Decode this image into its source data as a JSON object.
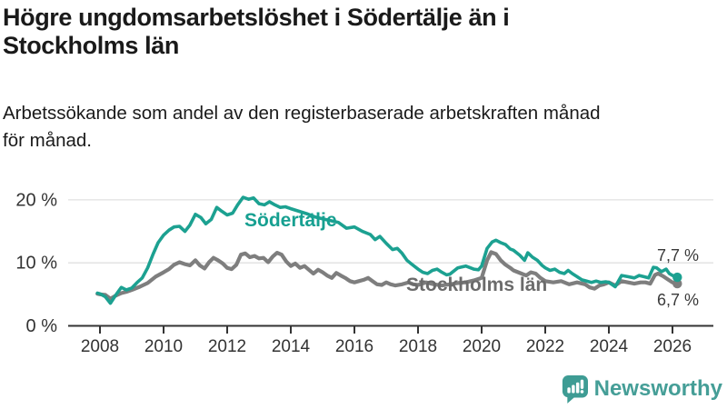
{
  "header": {
    "title": "Högre ungdomsarbetslöshet i Södertälje än i Stockholms län",
    "title_lines": [
      "Högre ungdomsarbetslöshet i Södertälje än i",
      "Stockholms län"
    ],
    "subtitle": "Arbetssökande som andel av den registerbaserade arbetskraften månad för månad.",
    "subtitle_lines": [
      "Arbetssökande som andel av den registerbaserade arbetskraften månad",
      "för månad."
    ]
  },
  "branding": {
    "name": "Newsworthy",
    "icon": "bar-chart-speech-bubble-icon",
    "color": "#459E97"
  },
  "chart_data": {
    "type": "line",
    "title": "Högre ungdomsarbetslöshet i Södertälje än i Stockholms län",
    "xlabel": "",
    "ylabel": "",
    "grid": "horizontal",
    "legend_position": "inline-labels",
    "x_axis": {
      "range": [
        2007.6,
        2027.3
      ],
      "ticks": [
        {
          "value": 2008,
          "label": "2008"
        },
        {
          "value": 2010,
          "label": "2010"
        },
        {
          "value": 2012,
          "label": "2012"
        },
        {
          "value": 2014,
          "label": "2014"
        },
        {
          "value": 2016,
          "label": "2016"
        },
        {
          "value": 2018,
          "label": "2018"
        },
        {
          "value": 2020,
          "label": "2020"
        },
        {
          "value": 2022,
          "label": "2022"
        },
        {
          "value": 2024,
          "label": "2024"
        },
        {
          "value": 2026,
          "label": "2026"
        }
      ]
    },
    "y_axis": {
      "range": [
        0,
        22
      ],
      "unit": "%",
      "ticks": [
        {
          "value": 0,
          "label": "0 %"
        },
        {
          "value": 10,
          "label": "10 %"
        },
        {
          "value": 20,
          "label": "20 %"
        }
      ]
    },
    "series": [
      {
        "name": "Södertälje",
        "color": "#1CA191",
        "label_color": "#17A091",
        "end_label": "7,7 %",
        "final_value": 7.7,
        "points": [
          [
            2007.92,
            5.2
          ],
          [
            2008.0,
            5.1
          ],
          [
            2008.17,
            4.6
          ],
          [
            2008.33,
            3.6
          ],
          [
            2008.5,
            4.9
          ],
          [
            2008.67,
            6.1
          ],
          [
            2008.83,
            5.7
          ],
          [
            2009.0,
            6.0
          ],
          [
            2009.17,
            6.9
          ],
          [
            2009.33,
            7.6
          ],
          [
            2009.5,
            9.2
          ],
          [
            2009.67,
            11.4
          ],
          [
            2009.83,
            13.2
          ],
          [
            2010.0,
            14.4
          ],
          [
            2010.17,
            15.2
          ],
          [
            2010.33,
            15.7
          ],
          [
            2010.5,
            15.8
          ],
          [
            2010.67,
            15.0
          ],
          [
            2010.83,
            16.0
          ],
          [
            2011.0,
            17.7
          ],
          [
            2011.17,
            17.2
          ],
          [
            2011.33,
            16.2
          ],
          [
            2011.5,
            16.9
          ],
          [
            2011.67,
            18.8
          ],
          [
            2011.83,
            18.2
          ],
          [
            2012.0,
            17.6
          ],
          [
            2012.17,
            17.9
          ],
          [
            2012.33,
            19.2
          ],
          [
            2012.5,
            20.4
          ],
          [
            2012.67,
            20.1
          ],
          [
            2012.83,
            20.3
          ],
          [
            2013.0,
            19.4
          ],
          [
            2013.17,
            19.2
          ],
          [
            2013.33,
            19.7
          ],
          [
            2013.5,
            19.2
          ],
          [
            2013.67,
            18.8
          ],
          [
            2013.83,
            18.9
          ],
          [
            2014.0,
            18.6
          ],
          [
            2014.25,
            18.2
          ],
          [
            2014.5,
            17.8
          ],
          [
            2014.75,
            17.3
          ],
          [
            2015.0,
            17.0
          ],
          [
            2015.25,
            16.7
          ],
          [
            2015.5,
            16.4
          ],
          [
            2015.75,
            15.5
          ],
          [
            2016.0,
            15.7
          ],
          [
            2016.25,
            15.0
          ],
          [
            2016.5,
            14.5
          ],
          [
            2016.65,
            13.7
          ],
          [
            2016.8,
            14.2
          ],
          [
            2017.0,
            13.1
          ],
          [
            2017.2,
            12.1
          ],
          [
            2017.35,
            12.3
          ],
          [
            2017.5,
            11.5
          ],
          [
            2017.65,
            10.4
          ],
          [
            2017.8,
            9.8
          ],
          [
            2018.0,
            9.0
          ],
          [
            2018.15,
            8.5
          ],
          [
            2018.3,
            8.3
          ],
          [
            2018.45,
            8.8
          ],
          [
            2018.6,
            9.0
          ],
          [
            2018.75,
            8.5
          ],
          [
            2018.9,
            8.1
          ],
          [
            2019.0,
            8.2
          ],
          [
            2019.25,
            9.2
          ],
          [
            2019.5,
            9.5
          ],
          [
            2019.75,
            9.0
          ],
          [
            2019.9,
            8.9
          ],
          [
            2020.0,
            9.5
          ],
          [
            2020.17,
            12.3
          ],
          [
            2020.33,
            13.3
          ],
          [
            2020.45,
            13.6
          ],
          [
            2020.6,
            13.2
          ],
          [
            2020.75,
            12.9
          ],
          [
            2020.9,
            12.2
          ],
          [
            2021.0,
            12.0
          ],
          [
            2021.2,
            11.2
          ],
          [
            2021.35,
            10.4
          ],
          [
            2021.45,
            11.6
          ],
          [
            2021.6,
            10.9
          ],
          [
            2021.75,
            10.4
          ],
          [
            2021.9,
            9.6
          ],
          [
            2022.0,
            9.2
          ],
          [
            2022.15,
            8.8
          ],
          [
            2022.3,
            9.0
          ],
          [
            2022.45,
            8.5
          ],
          [
            2022.6,
            8.3
          ],
          [
            2022.72,
            8.8
          ],
          [
            2022.85,
            8.3
          ],
          [
            2023.0,
            7.8
          ],
          [
            2023.15,
            7.3
          ],
          [
            2023.3,
            7.1
          ],
          [
            2023.45,
            6.9
          ],
          [
            2023.6,
            7.1
          ],
          [
            2023.75,
            6.9
          ],
          [
            2023.9,
            7.0
          ],
          [
            2024.0,
            6.9
          ],
          [
            2024.2,
            6.2
          ],
          [
            2024.4,
            8.0
          ],
          [
            2024.6,
            7.8
          ],
          [
            2024.8,
            7.6
          ],
          [
            2024.95,
            8.0
          ],
          [
            2025.1,
            7.8
          ],
          [
            2025.25,
            7.6
          ],
          [
            2025.4,
            9.3
          ],
          [
            2025.5,
            9.2
          ],
          [
            2025.65,
            8.6
          ],
          [
            2025.8,
            9.0
          ],
          [
            2025.9,
            8.3
          ],
          [
            2026.0,
            8.0
          ],
          [
            2026.15,
            7.7
          ]
        ]
      },
      {
        "name": "Stockholms län",
        "color": "#7E7E7E",
        "label_color": "#6B6B6B",
        "end_label": "6,7 %",
        "final_value": 6.7,
        "points": [
          [
            2007.92,
            5.1
          ],
          [
            2008.0,
            5.0
          ],
          [
            2008.17,
            4.9
          ],
          [
            2008.33,
            4.3
          ],
          [
            2008.5,
            4.8
          ],
          [
            2008.67,
            5.2
          ],
          [
            2008.83,
            5.4
          ],
          [
            2009.0,
            5.7
          ],
          [
            2009.25,
            6.2
          ],
          [
            2009.5,
            6.8
          ],
          [
            2009.75,
            7.8
          ],
          [
            2010.0,
            8.5
          ],
          [
            2010.17,
            9.0
          ],
          [
            2010.33,
            9.7
          ],
          [
            2010.5,
            10.1
          ],
          [
            2010.67,
            9.8
          ],
          [
            2010.83,
            9.6
          ],
          [
            2011.0,
            10.4
          ],
          [
            2011.14,
            9.6
          ],
          [
            2011.29,
            9.1
          ],
          [
            2011.43,
            10.1
          ],
          [
            2011.57,
            10.8
          ],
          [
            2011.71,
            10.4
          ],
          [
            2011.86,
            9.9
          ],
          [
            2012.0,
            9.2
          ],
          [
            2012.14,
            9.0
          ],
          [
            2012.29,
            9.7
          ],
          [
            2012.43,
            11.3
          ],
          [
            2012.57,
            11.5
          ],
          [
            2012.71,
            10.9
          ],
          [
            2012.86,
            11.1
          ],
          [
            2013.0,
            10.7
          ],
          [
            2013.14,
            10.8
          ],
          [
            2013.29,
            10.1
          ],
          [
            2013.43,
            11.0
          ],
          [
            2013.57,
            11.6
          ],
          [
            2013.71,
            11.3
          ],
          [
            2013.86,
            10.2
          ],
          [
            2014.0,
            9.5
          ],
          [
            2014.14,
            9.9
          ],
          [
            2014.29,
            9.2
          ],
          [
            2014.43,
            9.5
          ],
          [
            2014.57,
            8.9
          ],
          [
            2014.71,
            8.3
          ],
          [
            2014.86,
            8.9
          ],
          [
            2015.0,
            8.5
          ],
          [
            2015.14,
            8.0
          ],
          [
            2015.29,
            7.6
          ],
          [
            2015.43,
            8.4
          ],
          [
            2015.57,
            8.0
          ],
          [
            2015.71,
            7.6
          ],
          [
            2015.86,
            7.1
          ],
          [
            2016.0,
            6.9
          ],
          [
            2016.14,
            7.1
          ],
          [
            2016.29,
            7.3
          ],
          [
            2016.43,
            7.6
          ],
          [
            2016.57,
            7.1
          ],
          [
            2016.71,
            6.6
          ],
          [
            2016.86,
            6.5
          ],
          [
            2017.0,
            6.9
          ],
          [
            2017.14,
            6.6
          ],
          [
            2017.29,
            6.4
          ],
          [
            2017.5,
            6.6
          ],
          [
            2017.7,
            6.9
          ],
          [
            2017.85,
            6.6
          ],
          [
            2018.0,
            6.5
          ],
          [
            2018.25,
            6.9
          ],
          [
            2018.5,
            6.6
          ],
          [
            2018.75,
            6.4
          ],
          [
            2019.0,
            6.6
          ],
          [
            2019.25,
            6.8
          ],
          [
            2019.5,
            6.9
          ],
          [
            2019.75,
            7.2
          ],
          [
            2020.0,
            7.6
          ],
          [
            2020.17,
            10.4
          ],
          [
            2020.3,
            11.7
          ],
          [
            2020.45,
            11.4
          ],
          [
            2020.6,
            10.4
          ],
          [
            2020.75,
            9.7
          ],
          [
            2020.9,
            9.2
          ],
          [
            2021.0,
            8.8
          ],
          [
            2021.25,
            8.3
          ],
          [
            2021.4,
            8.0
          ],
          [
            2021.55,
            8.5
          ],
          [
            2021.7,
            8.3
          ],
          [
            2021.85,
            7.6
          ],
          [
            2022.0,
            7.1
          ],
          [
            2022.25,
            6.9
          ],
          [
            2022.5,
            7.1
          ],
          [
            2022.75,
            6.6
          ],
          [
            2023.0,
            6.9
          ],
          [
            2023.25,
            6.6
          ],
          [
            2023.4,
            6.1
          ],
          [
            2023.55,
            5.9
          ],
          [
            2023.7,
            6.4
          ],
          [
            2023.85,
            6.6
          ],
          [
            2024.0,
            6.9
          ],
          [
            2024.2,
            6.4
          ],
          [
            2024.4,
            7.1
          ],
          [
            2024.6,
            6.9
          ],
          [
            2024.8,
            6.7
          ],
          [
            2025.0,
            6.9
          ],
          [
            2025.15,
            6.9
          ],
          [
            2025.3,
            6.7
          ],
          [
            2025.45,
            8.1
          ],
          [
            2025.55,
            8.3
          ],
          [
            2025.7,
            7.9
          ],
          [
            2025.85,
            7.4
          ],
          [
            2026.0,
            6.9
          ],
          [
            2026.15,
            6.7
          ]
        ]
      }
    ]
  }
}
